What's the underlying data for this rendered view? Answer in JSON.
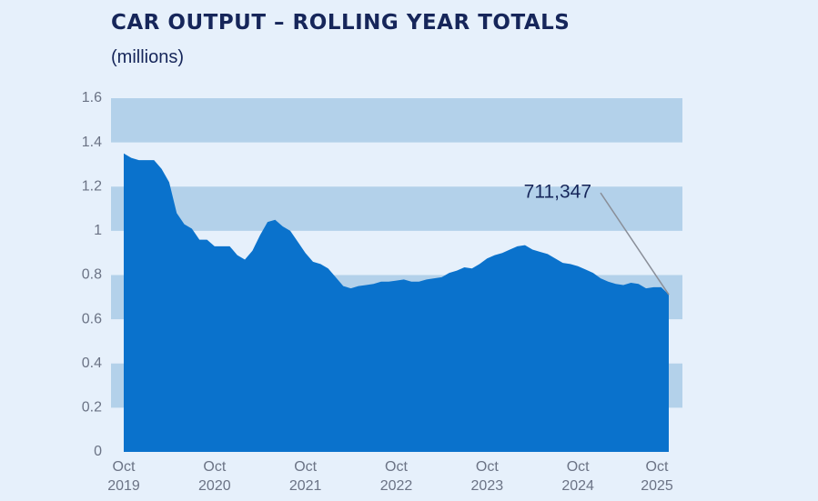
{
  "chart_data": {
    "type": "area",
    "title": "CAR OUTPUT – ROLLING YEAR TOTALS",
    "subtitle": "(millions)",
    "color": "#0a72cc",
    "band_color": "#b3d1ea",
    "grid": "bands",
    "x": [
      "2019-10",
      "2019-11",
      "2019-12",
      "2020-01",
      "2020-02",
      "2020-03",
      "2020-04",
      "2020-05",
      "2020-06",
      "2020-07",
      "2020-08",
      "2020-09",
      "2020-10",
      "2020-11",
      "2020-12",
      "2021-01",
      "2021-02",
      "2021-03",
      "2021-04",
      "2021-05",
      "2021-06",
      "2021-07",
      "2021-08",
      "2021-09",
      "2021-10",
      "2021-11",
      "2021-12",
      "2022-01",
      "2022-02",
      "2022-03",
      "2022-04",
      "2022-05",
      "2022-06",
      "2022-07",
      "2022-08",
      "2022-09",
      "2022-10",
      "2022-11",
      "2022-12",
      "2023-01",
      "2023-02",
      "2023-03",
      "2023-04",
      "2023-05",
      "2023-06",
      "2023-07",
      "2023-08",
      "2023-09",
      "2023-10",
      "2023-11",
      "2023-12",
      "2024-01",
      "2024-02",
      "2024-03",
      "2024-04",
      "2024-05",
      "2024-06",
      "2024-07",
      "2024-08",
      "2024-09",
      "2024-10",
      "2024-11",
      "2024-12",
      "2025-01",
      "2025-02",
      "2025-03",
      "2025-04",
      "2025-05",
      "2025-06",
      "2025-07",
      "2025-08",
      "2025-09",
      "2025-10"
    ],
    "values": [
      1.35,
      1.33,
      1.32,
      1.32,
      1.32,
      1.28,
      1.22,
      1.08,
      1.03,
      1.01,
      0.96,
      0.96,
      0.93,
      0.93,
      0.93,
      0.89,
      0.87,
      0.91,
      0.98,
      1.04,
      1.05,
      1.02,
      1.0,
      0.95,
      0.9,
      0.86,
      0.85,
      0.83,
      0.79,
      0.75,
      0.74,
      0.75,
      0.755,
      0.76,
      0.77,
      0.77,
      0.775,
      0.78,
      0.77,
      0.77,
      0.78,
      0.785,
      0.79,
      0.81,
      0.82,
      0.835,
      0.83,
      0.85,
      0.875,
      0.89,
      0.9,
      0.915,
      0.93,
      0.935,
      0.915,
      0.905,
      0.895,
      0.875,
      0.855,
      0.85,
      0.84,
      0.825,
      0.81,
      0.785,
      0.77,
      0.76,
      0.755,
      0.765,
      0.76,
      0.74,
      0.745,
      0.745,
      0.711347
    ],
    "value_labels": [
      null,
      null,
      null,
      null,
      null,
      null,
      null,
      null,
      null,
      null,
      null,
      null,
      null,
      null,
      null,
      null,
      null,
      null,
      null,
      null,
      null,
      null,
      null,
      null,
      null,
      null,
      null,
      null,
      null,
      null,
      null,
      null,
      null,
      null,
      null,
      null,
      null,
      null,
      null,
      null,
      null,
      null,
      null,
      null,
      null,
      null,
      null,
      null,
      null,
      null,
      null,
      null,
      null,
      null,
      null,
      null,
      null,
      null,
      null,
      null,
      null,
      null,
      null,
      null,
      null,
      null,
      null,
      null,
      null,
      null,
      null,
      null,
      "711,347"
    ],
    "xlim": [
      "2019-10",
      "2025-10"
    ],
    "xticks": [
      {
        "value": "2019-10",
        "label": "Oct 2019"
      },
      {
        "value": "2020-10",
        "label": "Oct 2020"
      },
      {
        "value": "2021-10",
        "label": "Oct 2021"
      },
      {
        "value": "2022-10",
        "label": "Oct 2022"
      },
      {
        "value": "2023-10",
        "label": "Oct 2023"
      },
      {
        "value": "2024-10",
        "label": "Oct 2024"
      },
      {
        "value": "2025-10",
        "label": "Oct 2025"
      }
    ],
    "ylim": [
      0,
      1.6
    ],
    "yticks": [
      0,
      0.2,
      0.4,
      0.6,
      0.8,
      1,
      1.2,
      1.4,
      1.6
    ]
  }
}
